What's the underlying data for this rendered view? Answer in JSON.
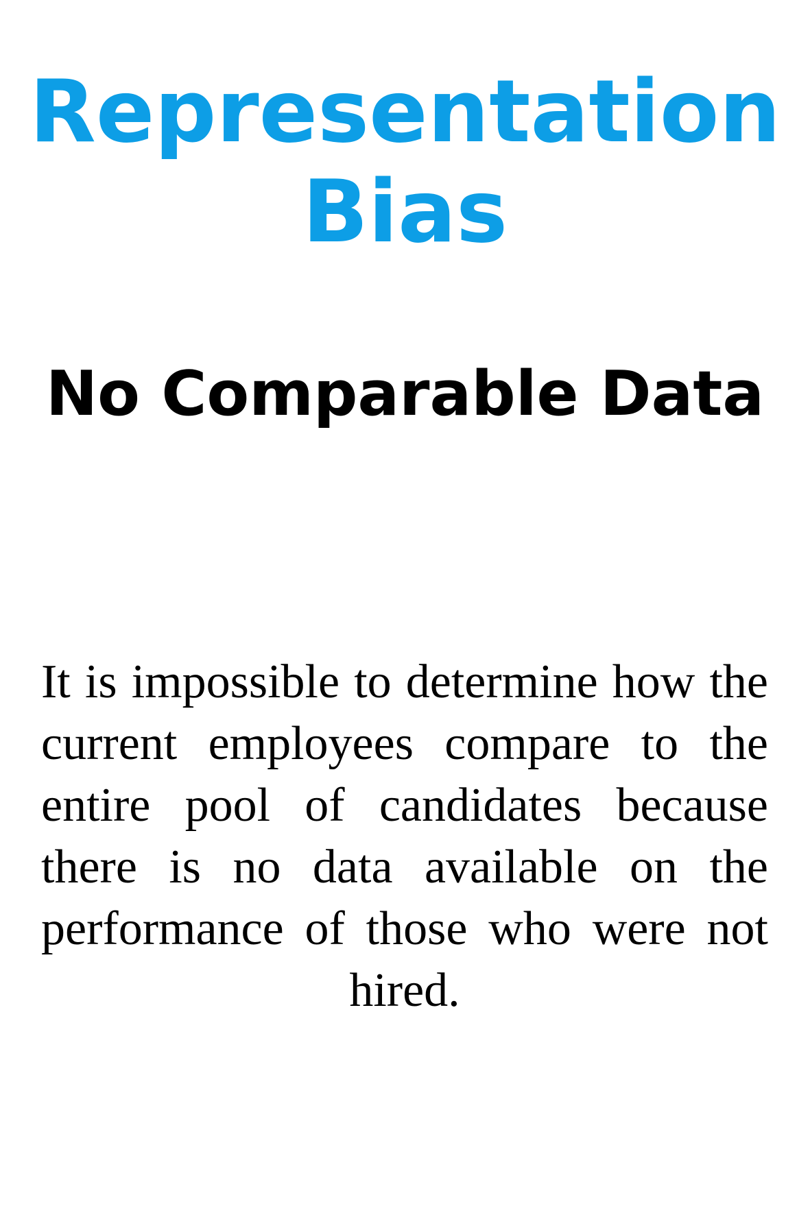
{
  "card": {
    "title_line1": "Representation",
    "title_line2": "Bias",
    "subtitle": "No Comparable Data",
    "body": "It is impossible to determine how the current employees compare to the entire pool of candidates because there is no data available on the performance of those who were not hired.",
    "accent_color": "#0d9ee6"
  }
}
